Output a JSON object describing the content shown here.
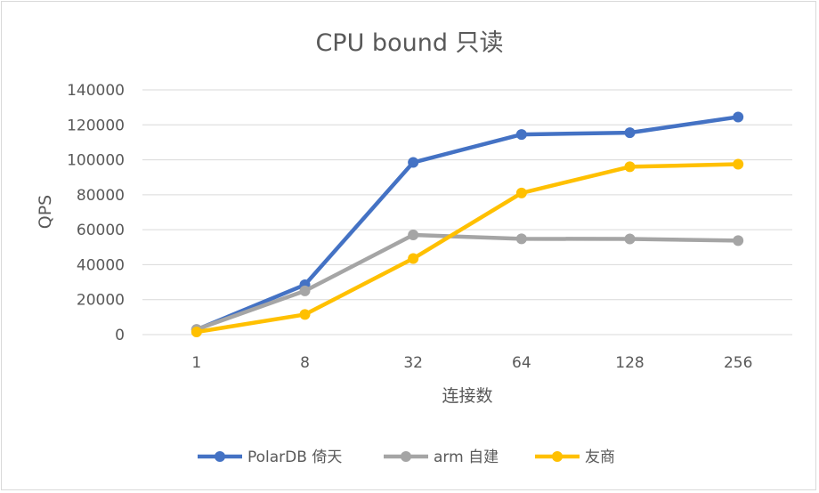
{
  "chart_data": {
    "type": "line",
    "title": "CPU bound 只读",
    "xlabel": "连接数",
    "ylabel": "QPS",
    "categories": [
      "1",
      "8",
      "32",
      "64",
      "128",
      "256"
    ],
    "ylim": [
      0,
      140000
    ],
    "yticks": [
      0,
      20000,
      40000,
      60000,
      80000,
      100000,
      120000,
      140000
    ],
    "grid": true,
    "legend": "bottom",
    "series": [
      {
        "name": "PolarDB 倚天",
        "color": "#4472c4",
        "values": [
          2800,
          28500,
          98500,
          114500,
          115500,
          124500
        ]
      },
      {
        "name": "arm 自建",
        "color": "#a5a5a5",
        "values": [
          3000,
          25000,
          57000,
          54800,
          54700,
          53800
        ]
      },
      {
        "name": "友商",
        "color": "#ffc000",
        "values": [
          1500,
          11500,
          43500,
          81000,
          96000,
          97500
        ]
      }
    ]
  }
}
